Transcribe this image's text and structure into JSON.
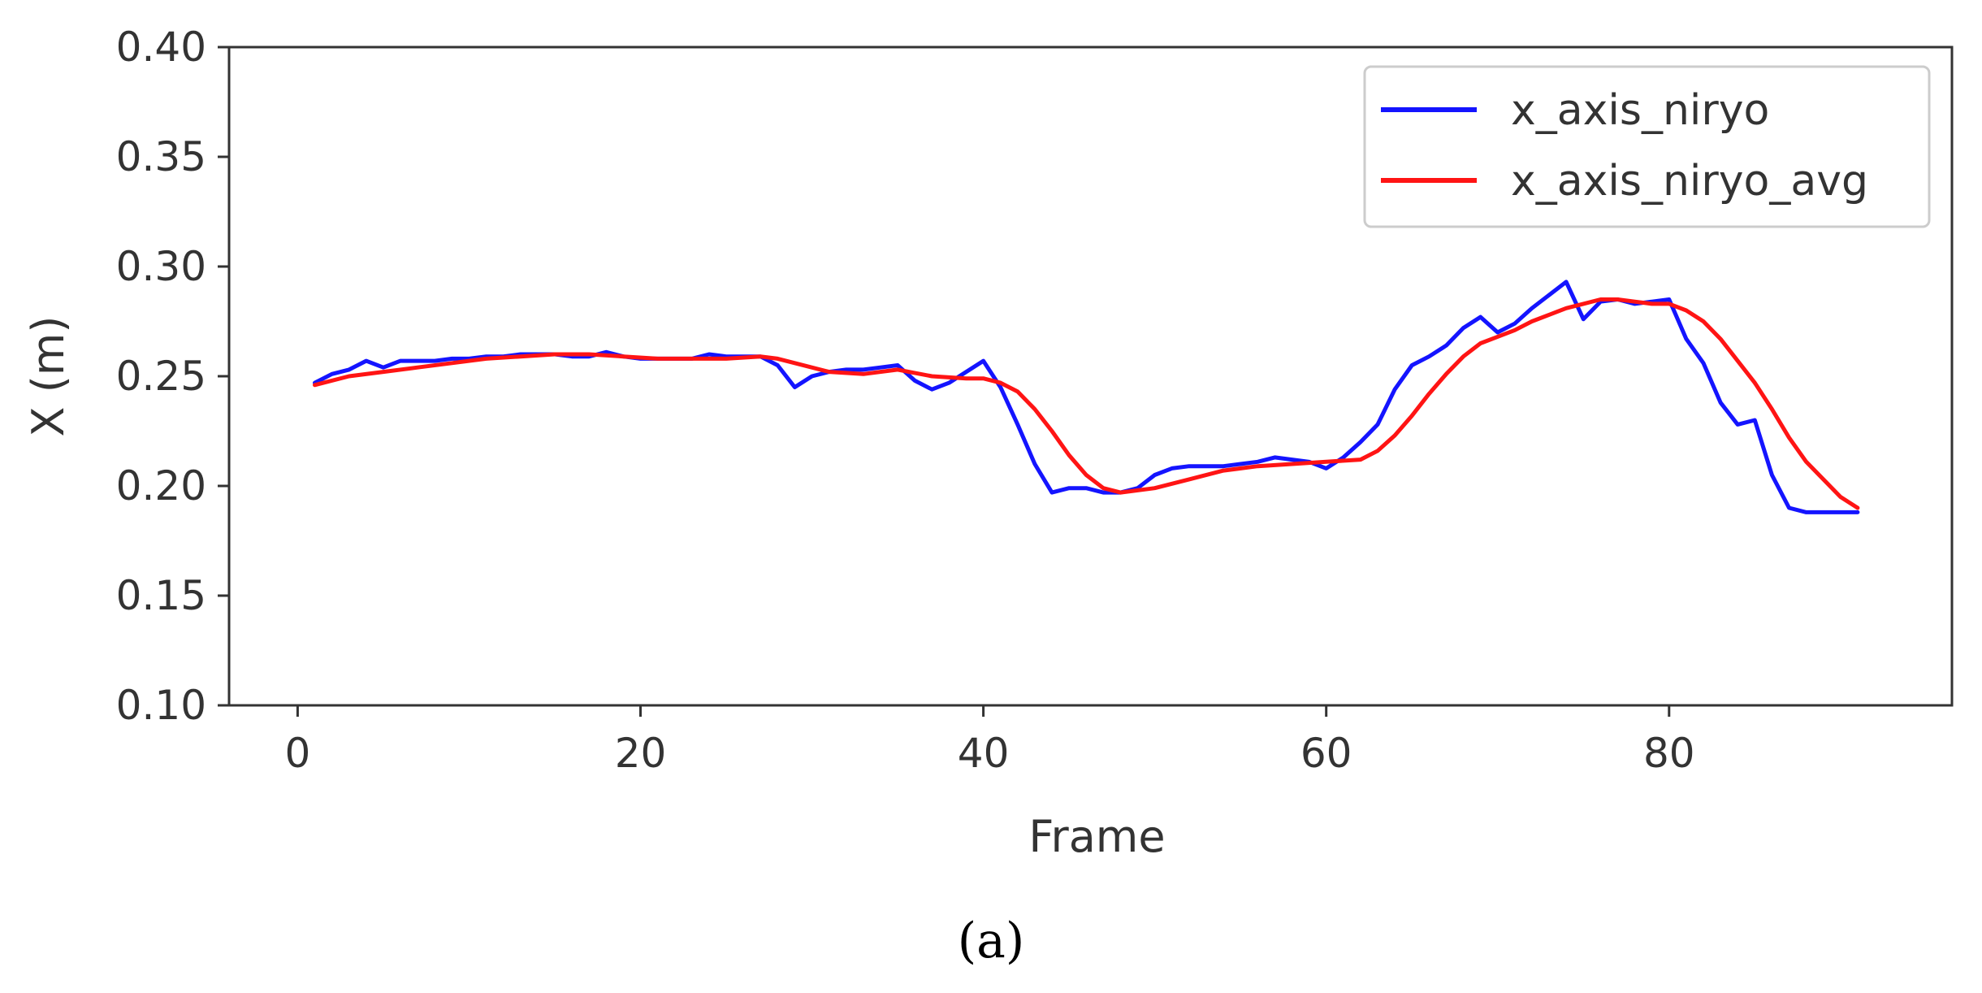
{
  "chart_data": {
    "type": "line",
    "xlabel": "Frame",
    "ylabel": "X (m)",
    "xlim": [
      -4,
      96.5
    ],
    "ylim": [
      0.1,
      0.4
    ],
    "x_ticks": [
      0,
      20,
      40,
      60,
      80
    ],
    "x_tick_labels": [
      "0",
      "20",
      "40",
      "60",
      "80"
    ],
    "y_ticks": [
      0.1,
      0.15,
      0.2,
      0.25,
      0.3,
      0.35,
      0.4
    ],
    "y_tick_labels": [
      "0.10",
      "0.15",
      "0.20",
      "0.25",
      "0.30",
      "0.35",
      "0.40"
    ],
    "grid": false,
    "legend_position": "top-right",
    "caption": "(a)",
    "series": [
      {
        "name": "x_axis_niryo",
        "color": "#1414ff",
        "x": [
          1,
          2,
          3,
          4,
          5,
          6,
          7,
          8,
          9,
          10,
          11,
          12,
          13,
          14,
          15,
          16,
          17,
          18,
          19,
          20,
          21,
          22,
          23,
          24,
          25,
          26,
          27,
          28,
          29,
          30,
          31,
          32,
          33,
          34,
          35,
          36,
          37,
          38,
          39,
          40,
          41,
          42,
          43,
          44,
          45,
          46,
          47,
          48,
          49,
          50,
          51,
          52,
          53,
          54,
          55,
          56,
          57,
          58,
          59,
          60,
          61,
          62,
          63,
          64,
          65,
          66,
          67,
          68,
          69,
          70,
          71,
          72,
          73,
          74,
          75,
          76,
          77,
          78,
          79,
          80,
          81,
          82,
          83,
          84,
          85,
          86,
          87,
          88,
          89,
          90,
          91
        ],
        "values": [
          0.247,
          0.251,
          0.253,
          0.257,
          0.254,
          0.257,
          0.257,
          0.257,
          0.258,
          0.258,
          0.259,
          0.259,
          0.26,
          0.26,
          0.26,
          0.259,
          0.259,
          0.261,
          0.259,
          0.258,
          0.258,
          0.258,
          0.258,
          0.26,
          0.259,
          0.259,
          0.259,
          0.255,
          0.245,
          0.25,
          0.252,
          0.253,
          0.253,
          0.254,
          0.255,
          0.248,
          0.244,
          0.247,
          0.252,
          0.257,
          0.245,
          0.228,
          0.21,
          0.197,
          0.199,
          0.199,
          0.197,
          0.197,
          0.199,
          0.205,
          0.208,
          0.209,
          0.209,
          0.209,
          0.21,
          0.211,
          0.213,
          0.212,
          0.211,
          0.208,
          0.213,
          0.22,
          0.228,
          0.244,
          0.255,
          0.259,
          0.264,
          0.272,
          0.277,
          0.27,
          0.274,
          0.281,
          0.287,
          0.293,
          0.276,
          0.284,
          0.285,
          0.283,
          0.284,
          0.285,
          0.267,
          0.256,
          0.238,
          0.228,
          0.23,
          0.205,
          0.19,
          0.188,
          0.188,
          0.188,
          0.188
        ]
      },
      {
        "name": "x_axis_niryo_avg",
        "color": "#ff1414",
        "x": [
          1,
          3,
          5,
          7,
          9,
          11,
          13,
          15,
          17,
          19,
          21,
          23,
          25,
          27,
          28,
          29,
          31,
          33,
          35,
          37,
          39,
          40,
          41,
          42,
          43,
          44,
          45,
          46,
          47,
          48,
          50,
          52,
          54,
          56,
          58,
          60,
          62,
          63,
          64,
          65,
          66,
          67,
          68,
          69,
          70,
          71,
          72,
          73,
          74,
          75,
          76,
          77,
          78,
          79,
          80,
          81,
          82,
          83,
          84,
          85,
          86,
          87,
          88,
          89,
          90,
          91
        ],
        "values": [
          0.246,
          0.25,
          0.252,
          0.254,
          0.256,
          0.258,
          0.259,
          0.26,
          0.26,
          0.259,
          0.258,
          0.258,
          0.258,
          0.259,
          0.258,
          0.256,
          0.252,
          0.251,
          0.253,
          0.25,
          0.249,
          0.249,
          0.247,
          0.243,
          0.235,
          0.225,
          0.214,
          0.205,
          0.199,
          0.197,
          0.199,
          0.203,
          0.207,
          0.209,
          0.21,
          0.211,
          0.212,
          0.216,
          0.223,
          0.232,
          0.242,
          0.251,
          0.259,
          0.265,
          0.268,
          0.271,
          0.275,
          0.278,
          0.281,
          0.283,
          0.285,
          0.285,
          0.284,
          0.283,
          0.283,
          0.28,
          0.275,
          0.267,
          0.257,
          0.247,
          0.235,
          0.222,
          0.211,
          0.203,
          0.195,
          0.19
        ]
      }
    ]
  }
}
